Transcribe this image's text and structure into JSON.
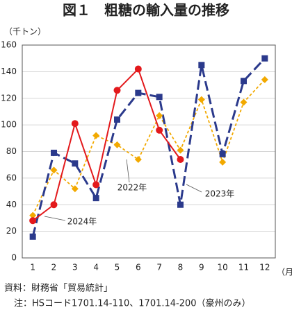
{
  "chart_data": {
    "type": "line",
    "title": "図１　粗糖の輸入量の推移",
    "y_label": "（千トン）",
    "x_label": "（月）",
    "categories": [
      "1",
      "2",
      "3",
      "4",
      "5",
      "6",
      "7",
      "8",
      "9",
      "10",
      "11",
      "12"
    ],
    "ylim": [
      0,
      160
    ],
    "yticks": [
      0,
      20,
      40,
      60,
      80,
      100,
      120,
      140,
      160
    ],
    "grid": true,
    "series": [
      {
        "name": "2022年",
        "color": "#f2a900",
        "values": [
          32,
          66,
          52,
          92,
          85,
          74,
          107,
          81,
          119,
          72,
          117,
          134
        ]
      },
      {
        "name": "2023年",
        "color": "#2b3a8c",
        "values": [
          16,
          79,
          71,
          45,
          104,
          124,
          121,
          40,
          145,
          78,
          133,
          150
        ]
      },
      {
        "name": "2024年",
        "color": "#e3191c",
        "values": [
          28,
          40,
          101,
          55,
          126,
          142,
          96,
          74,
          null,
          null,
          null,
          null
        ]
      }
    ],
    "notes": [
      "資料：財務省「貿易統計」",
      "注：HSコード1701.14-110、1701.14-200（豪州のみ）"
    ]
  }
}
